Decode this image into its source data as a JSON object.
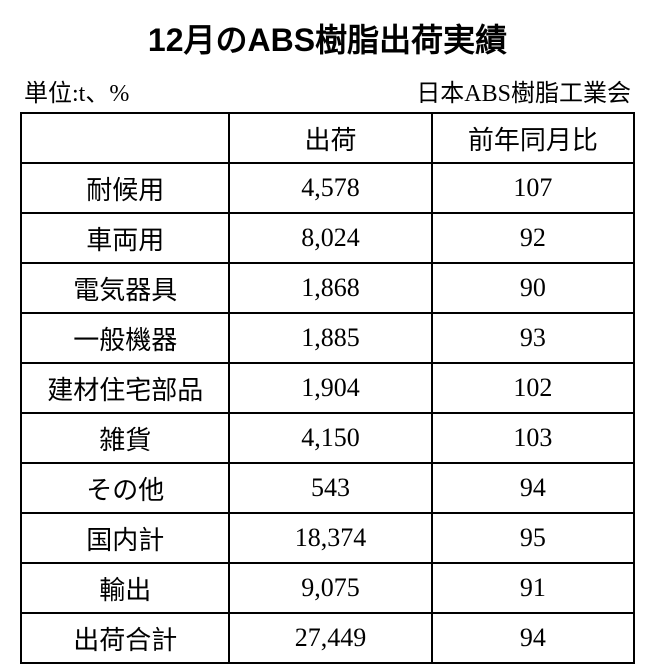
{
  "title": "12月のABS樹脂出荷実績",
  "unit_label": "単位:t、%",
  "source_label": "日本ABS樹脂工業会",
  "table": {
    "type": "table",
    "background_color": "#ffffff",
    "border_color": "#000000",
    "font_color": "#000000",
    "title_fontsize": 32,
    "meta_fontsize": 24,
    "cell_fontsize": 26,
    "columns": [
      "",
      "出荷",
      "前年同月比"
    ],
    "rows": [
      {
        "label": "耐候用",
        "value": "4,578",
        "yoy": "107"
      },
      {
        "label": "車両用",
        "value": "8,024",
        "yoy": "92"
      },
      {
        "label": "電気器具",
        "value": "1,868",
        "yoy": "90"
      },
      {
        "label": "一般機器",
        "value": "1,885",
        "yoy": "93"
      },
      {
        "label": "建材住宅部品",
        "value": "1,904",
        "yoy": "102"
      },
      {
        "label": "雑貨",
        "value": "4,150",
        "yoy": "103"
      },
      {
        "label": "その他",
        "value": "543",
        "yoy": "94"
      },
      {
        "label": "国内計",
        "value": "18,374",
        "yoy": "95"
      },
      {
        "label": "輸出",
        "value": "9,075",
        "yoy": "91"
      },
      {
        "label": "出荷合計",
        "value": "27,449",
        "yoy": "94"
      }
    ]
  }
}
